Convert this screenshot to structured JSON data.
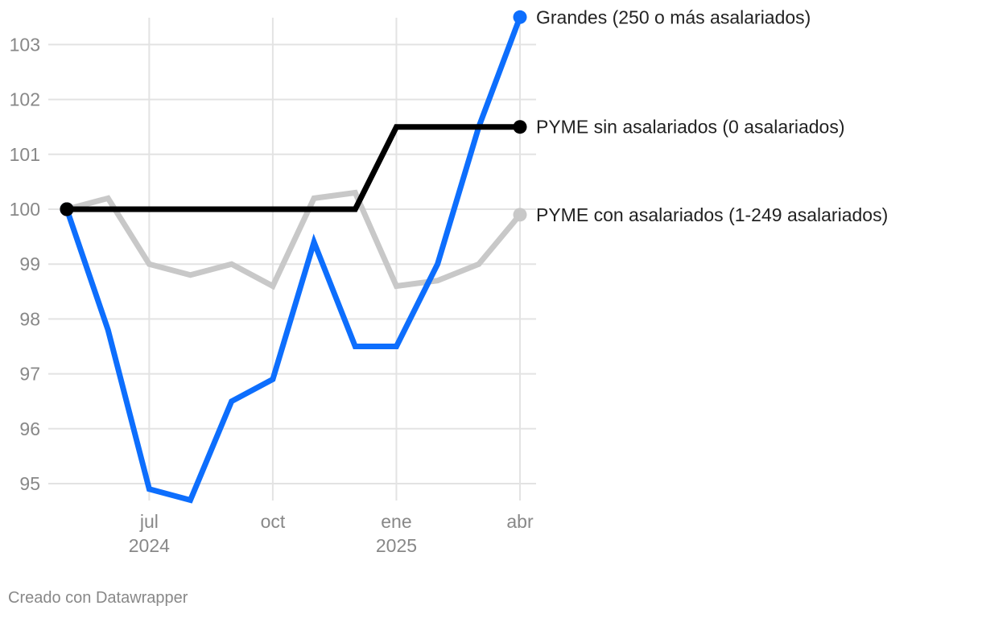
{
  "credit": "Creado con Datawrapper",
  "chart_data": {
    "type": "line",
    "title": "",
    "xlabel": "",
    "ylabel": "",
    "x": [
      "2024-05",
      "2024-06",
      "2024-07",
      "2024-08",
      "2024-09",
      "2024-10",
      "2024-11",
      "2024-12",
      "2025-01",
      "2025-02",
      "2025-03",
      "2025-04"
    ],
    "ylim": [
      94.5,
      103.5
    ],
    "y_ticks": [
      95,
      96,
      97,
      98,
      99,
      100,
      101,
      102,
      103
    ],
    "x_ticks": [
      {
        "x": "2024-07",
        "label": "jul",
        "year": "2024"
      },
      {
        "x": "2024-10",
        "label": "oct",
        "year": ""
      },
      {
        "x": "2025-01",
        "label": "ene",
        "year": "2025"
      },
      {
        "x": "2025-04",
        "label": "abr",
        "year": ""
      }
    ],
    "grid": true,
    "legend": "direct labels at line ends (right)",
    "series": [
      {
        "name": "PYME con asalariados (1-249 asalariados)",
        "color": "#c8c8c8",
        "values": [
          100.0,
          100.2,
          99.0,
          98.8,
          99.0,
          98.6,
          100.2,
          100.3,
          98.6,
          98.7,
          99.0,
          99.9
        ]
      },
      {
        "name": "Grandes (250 o más asalariados)",
        "color": "#0d6efd",
        "values": [
          100.0,
          97.8,
          94.9,
          94.7,
          96.5,
          96.9,
          99.4,
          97.5,
          97.5,
          99.0,
          101.5,
          103.5
        ]
      },
      {
        "name": "PYME sin asalariados (0 asalariados)",
        "color": "#000000",
        "values": [
          100.0,
          100.0,
          100.0,
          100.0,
          100.0,
          100.0,
          100.0,
          100.0,
          101.5,
          101.5,
          101.5,
          101.5
        ]
      }
    ]
  }
}
